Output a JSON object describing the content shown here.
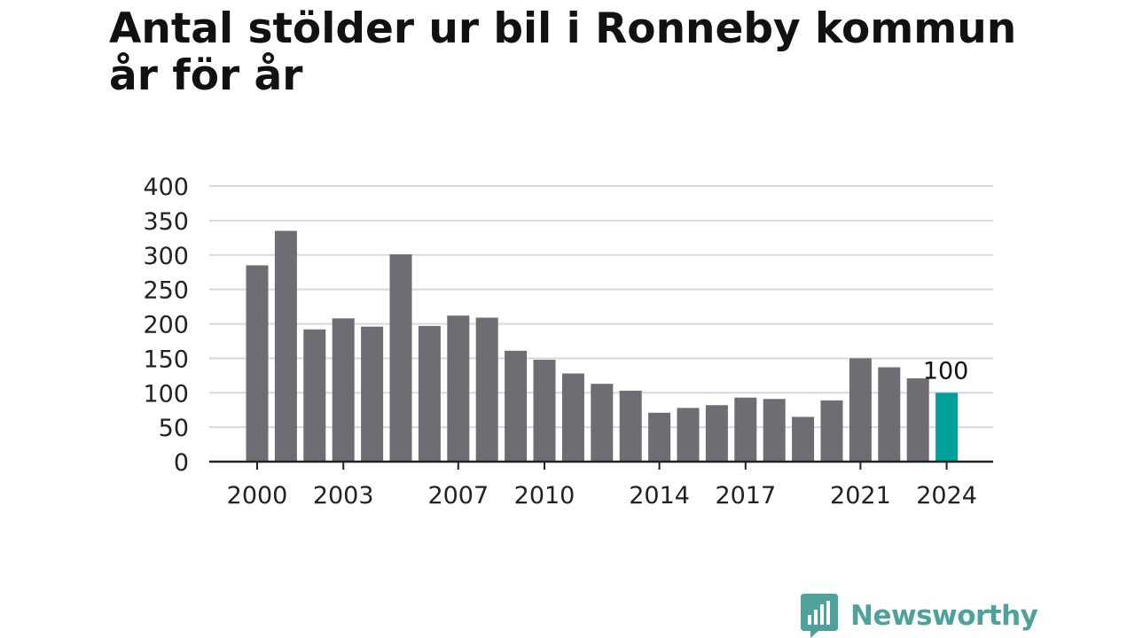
{
  "title": {
    "line1": "Antal stölder ur bil i Ronneby kommun",
    "line2": "år för år"
  },
  "brand": {
    "name": "Newsworthy",
    "icon": "newsworthy-logo-icon"
  },
  "colors": {
    "bar": "#6e6d73",
    "highlight": "#00a19a",
    "grid": "#d9d9d9",
    "axis": "#222222"
  },
  "chart_data": {
    "type": "bar",
    "title": "Antal stölder ur bil i Ronneby kommun år för år",
    "xlabel": "",
    "ylabel": "",
    "ylim": [
      0,
      400
    ],
    "yticks": [
      0,
      50,
      100,
      150,
      200,
      250,
      300,
      350,
      400
    ],
    "grid": true,
    "categories": [
      2000,
      2001,
      2002,
      2003,
      2004,
      2005,
      2006,
      2007,
      2008,
      2009,
      2010,
      2011,
      2012,
      2013,
      2014,
      2015,
      2016,
      2017,
      2018,
      2019,
      2020,
      2021,
      2022,
      2023,
      2024
    ],
    "xtick_labels": [
      "2000",
      "2003",
      "2007",
      "2010",
      "2014",
      "2017",
      "2021",
      "2024"
    ],
    "values": [
      285,
      335,
      192,
      208,
      196,
      301,
      197,
      212,
      209,
      161,
      148,
      128,
      113,
      103,
      71,
      78,
      82,
      93,
      91,
      65,
      89,
      150,
      137,
      121,
      100
    ],
    "highlight_index": 24,
    "annotations": [
      {
        "category": 2024,
        "text": "100"
      }
    ]
  }
}
